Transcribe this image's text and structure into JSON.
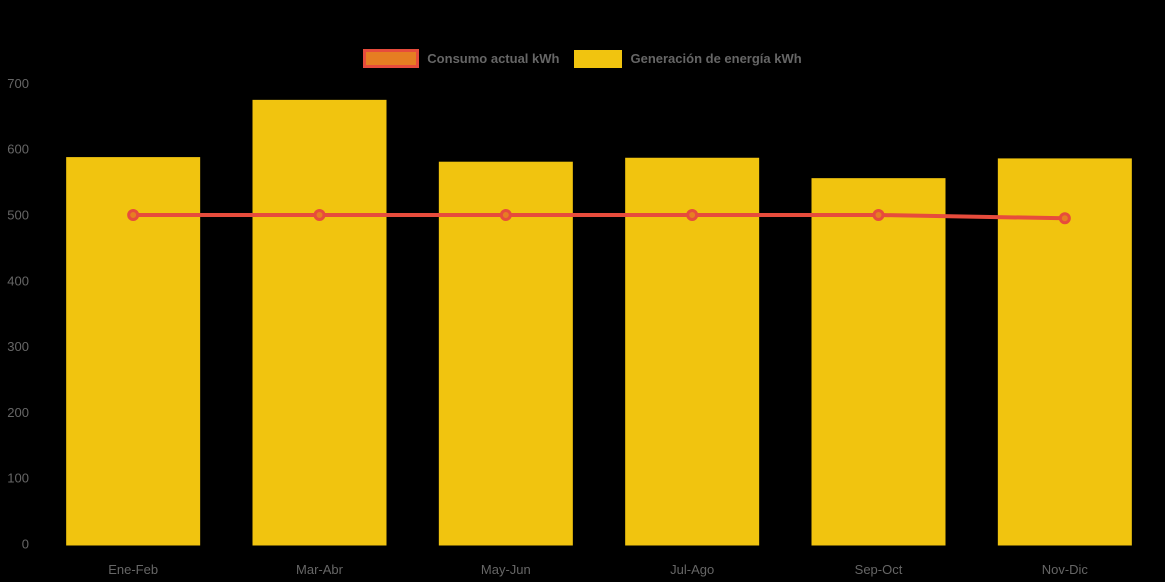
{
  "chart_data": {
    "type": "bar",
    "title": "",
    "xlabel": "",
    "ylabel": "",
    "categories": [
      "Ene-Feb",
      "Mar-Abr",
      "May-Jun",
      "Jul-Ago",
      "Sep-Oct",
      "Nov-Dic"
    ],
    "series": [
      {
        "name": "Consumo actual kWh",
        "type": "line",
        "values": [
          500,
          500,
          500,
          500,
          500,
          495
        ],
        "color": "#E74C3C",
        "marker_fill": "#E67E22"
      },
      {
        "name": "Generación de energía kWh",
        "type": "bar",
        "values": [
          588,
          675,
          581,
          587,
          556,
          586
        ],
        "color": "#F1C40F"
      }
    ],
    "ylim": [
      0,
      700
    ],
    "yticks": [
      0,
      100,
      200,
      300,
      400,
      500,
      600,
      700
    ],
    "legend_position": "top",
    "grid": false,
    "background": "#000000",
    "axis_text_color": "#666666"
  }
}
